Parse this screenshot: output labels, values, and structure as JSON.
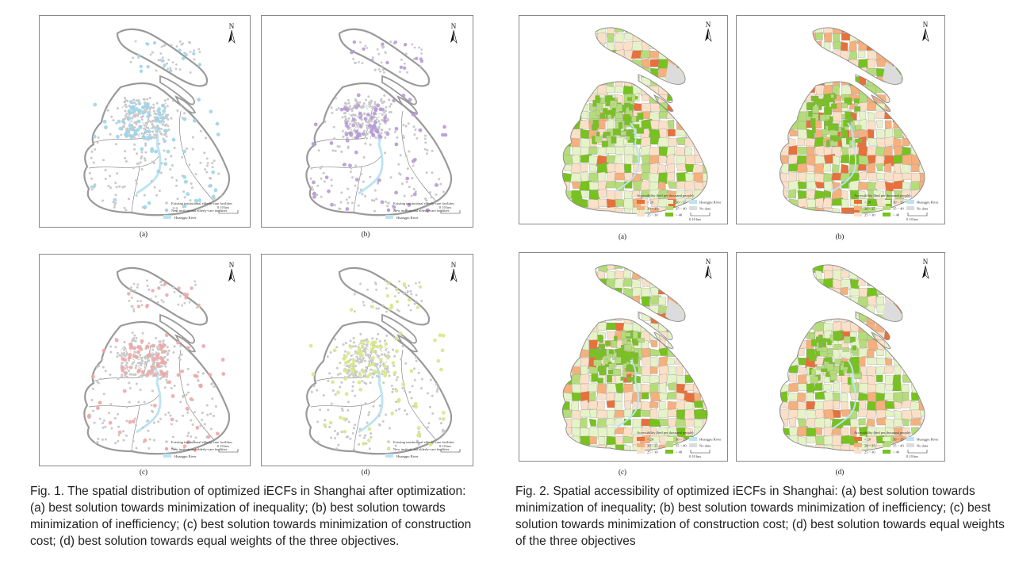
{
  "fig1": {
    "legend_existing": "Existing institutional elderly-care facilities",
    "legend_new": "New institutional elderly-care facilities",
    "legend_river": "Huangpu River",
    "scale_label": "0      10 km",
    "north": "N",
    "panels": [
      {
        "label": "(a)",
        "legend_existing": "Existing institutional elderly-care facilities",
        "color": "#9fd4e8"
      },
      {
        "label": "(b)",
        "legend_existing": "Existing institutional elderly-care facilities",
        "color": "#b79bd6"
      },
      {
        "label": "(c)",
        "legend_existing": "Existing institutional elderly-care facilities",
        "color": "#eea7a7"
      },
      {
        "label": "(d)",
        "legend_existing": "Existing institutional elderly-care facilities",
        "color": "#d8e58c"
      }
    ],
    "caption": "Fig. 1. The spatial distribution of optimized iECFs in Shanghai after optimization: (a) best solution towards minimization of inequality; (b) best solution towards minimization of inefficiency; (c) best solution towards minimization of construction cost; (d) best solution towards equal weights of the three objectives."
  },
  "fig2": {
    "legend_title": "Accessibility (bed per thousand people)",
    "legend_items": [
      "< 20",
      "20 ~ 25",
      "25 ~ 30",
      "30 ~ 35",
      "35 ~ 40",
      "> 40",
      "Huangpu River",
      "No data"
    ],
    "legend_colors": [
      "#e8703a",
      "#f5b07e",
      "#fbe0c8",
      "#e6f3c8",
      "#b5dc7a",
      "#77c21f",
      "#bde3f2",
      "#dcdcdc"
    ],
    "scale_label": "0      10 km",
    "north": "N",
    "panels": [
      {
        "label": "(a)"
      },
      {
        "label": "(b)"
      },
      {
        "label": "(c)"
      },
      {
        "label": "(d)"
      }
    ],
    "caption": "Fig. 2. Spatial accessibility of optimized iECFs in Shanghai: (a) best solution towards minimization of inequality; (b) best solution towards minimization of inefficiency; (c) best solution towards minimization of construction cost; (d) best solution towards equal weights of the three objectives"
  }
}
